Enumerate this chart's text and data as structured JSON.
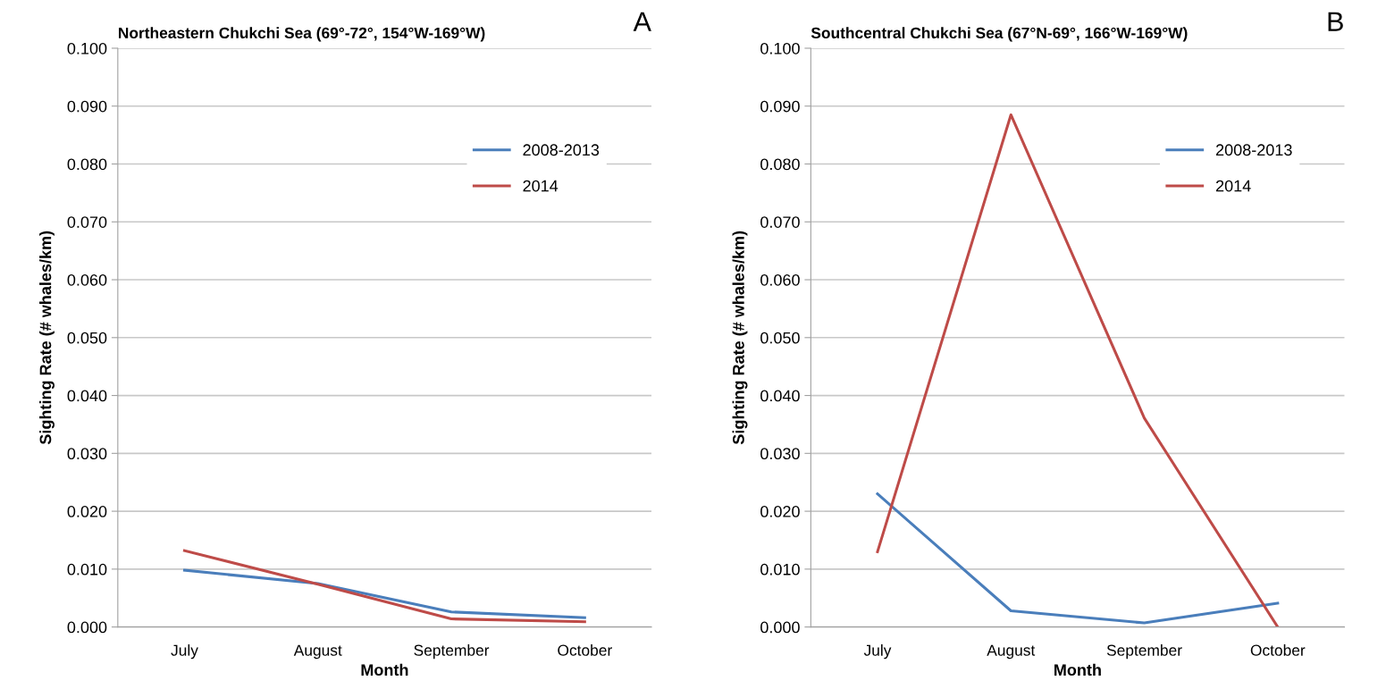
{
  "chart_data": [
    {
      "type": "line",
      "title": "Northeastern Chukchi Sea (69°-72°, 154°W-169°W)",
      "annotations": [
        "A"
      ],
      "xlabel": "Month",
      "ylabel": "Sighting Rate (# whales/km)",
      "categories": [
        "July",
        "August",
        "September",
        "October"
      ],
      "series": [
        {
          "name": "2008-2013",
          "color": "#4a7ebb",
          "values": [
            0.0098,
            0.0075,
            0.0026,
            0.0016
          ]
        },
        {
          "name": "2014",
          "color": "#be4b48",
          "values": [
            0.0132,
            0.0074,
            0.0014,
            0.0009
          ]
        }
      ],
      "ylim": [
        0,
        0.1
      ],
      "yticks": [
        {
          "value": 0,
          "label": "0.000"
        },
        {
          "value": 0.01,
          "label": "0.010"
        },
        {
          "value": 0.02,
          "label": "0.020"
        },
        {
          "value": 0.03,
          "label": "0.030"
        },
        {
          "value": 0.04,
          "label": "0.040"
        },
        {
          "value": 0.05,
          "label": "0.050"
        },
        {
          "value": 0.06,
          "label": "0.060"
        },
        {
          "value": 0.07,
          "label": "0.070"
        },
        {
          "value": 0.08,
          "label": "0.080"
        },
        {
          "value": 0.09,
          "label": "0.090"
        },
        {
          "value": 0.1,
          "label": "0.100"
        }
      ],
      "grid": "y",
      "legend": "top right"
    },
    {
      "type": "line",
      "title": "Southcentral Chukchi Sea (67°N-69°, 166°W-169°W)",
      "annotations": [
        "B"
      ],
      "xlabel": "Month",
      "ylabel": "Sighting Rate (# whales/km)",
      "categories": [
        "July",
        "August",
        "September",
        "October"
      ],
      "series": [
        {
          "name": "2008-2013",
          "color": "#4a7ebb",
          "values": [
            0.023,
            0.0028,
            0.0007,
            0.0041
          ]
        },
        {
          "name": "2014",
          "color": "#be4b48",
          "values": [
            0.013,
            0.0885,
            0.0361,
            0.0
          ]
        }
      ],
      "ylim": [
        0,
        0.1
      ],
      "yticks": [
        {
          "value": 0,
          "label": "0.000"
        },
        {
          "value": 0.01,
          "label": "0.010"
        },
        {
          "value": 0.02,
          "label": "0.020"
        },
        {
          "value": 0.03,
          "label": "0.030"
        },
        {
          "value": 0.04,
          "label": "0.040"
        },
        {
          "value": 0.05,
          "label": "0.050"
        },
        {
          "value": 0.06,
          "label": "0.060"
        },
        {
          "value": 0.07,
          "label": "0.070"
        },
        {
          "value": 0.08,
          "label": "0.080"
        },
        {
          "value": 0.09,
          "label": "0.090"
        },
        {
          "value": 0.1,
          "label": "0.100"
        }
      ],
      "grid": "y",
      "legend": "top right"
    }
  ]
}
